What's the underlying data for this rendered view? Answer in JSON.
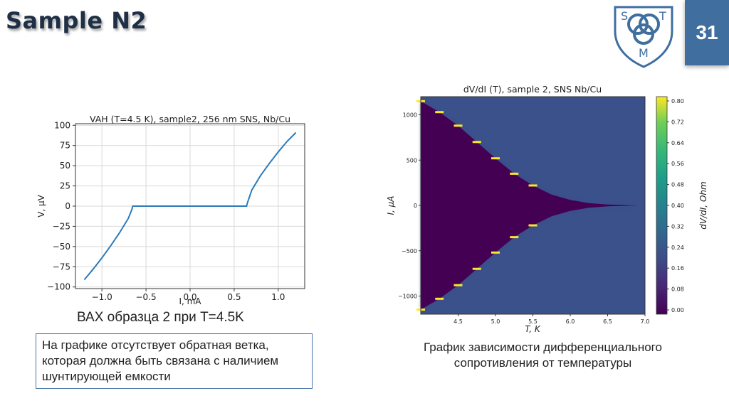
{
  "slide": {
    "title": "Sample N2",
    "page_number": "31",
    "logo_letters": [
      "S",
      "T",
      "M"
    ]
  },
  "captions": {
    "left": "ВАХ образца 2 при T=4.5K",
    "right": "График зависимости дифференциального сопротивления от температуры"
  },
  "note": {
    "text": "На графике отсутствует обратная ветка, которая должна быть связана с наличием шунтирующей емкости"
  },
  "colors": {
    "line": "#2b7bba",
    "title": "#1f2f45",
    "badge": "#3f6e9f",
    "box_border": "#4a75a8"
  },
  "chart_data": [
    {
      "type": "line",
      "title": "VAH (T=4.5 K), sample2, 256 nm SNS, Nb/Cu",
      "xlabel": "I, mA",
      "ylabel": "V, μV",
      "xlim": [
        -1.3,
        1.3
      ],
      "ylim": [
        -102,
        102
      ],
      "xticks": [
        -1.0,
        -0.5,
        0.0,
        0.5,
        1.0
      ],
      "xtick_labels": [
        "−1.0",
        "−0.5",
        "0.0",
        "0.5",
        "1.0"
      ],
      "yticks": [
        100,
        75,
        50,
        25,
        0,
        -25,
        -50,
        -75,
        -100
      ],
      "ytick_labels": [
        "100",
        "75",
        "50",
        "25",
        "0",
        "−25",
        "−50",
        "−75",
        "−100"
      ],
      "grid": true,
      "series": [
        {
          "x": [
            -1.2,
            -1.1,
            -1.0,
            -0.9,
            -0.8,
            -0.7,
            -0.66,
            -0.65,
            -0.5,
            0.0,
            0.5,
            0.64,
            0.65,
            0.7,
            0.8,
            0.9,
            1.0,
            1.1,
            1.2
          ],
          "y": [
            -91,
            -78,
            -64,
            -49,
            -33,
            -15,
            -4,
            0,
            0,
            0,
            0,
            0,
            4,
            20,
            38,
            53,
            67,
            80,
            91
          ]
        }
      ]
    },
    {
      "type": "heatmap",
      "title": "dV/dI (T), sample 2, SNS Nb/Cu",
      "xlabel": "T, K",
      "ylabel": "I, μA",
      "xlim": [
        4.0,
        7.0
      ],
      "ylim": [
        -1200,
        1200
      ],
      "xticks": [
        4.5,
        5.0,
        5.5,
        6.0,
        6.5,
        7.0
      ],
      "xtick_labels": [
        "4.5",
        "5.0",
        "5.5",
        "6.0",
        "6.5",
        "7.0"
      ],
      "yticks": [
        1000,
        500,
        0,
        -500,
        -1000
      ],
      "ytick_labels": [
        "1000",
        "500",
        "0",
        "−500",
        "−1000"
      ],
      "colorbar_label": "dV/dI, Ohm",
      "colorbar_ticks": [
        0.8,
        0.72,
        0.64,
        0.56,
        0.48,
        0.4,
        0.32,
        0.24,
        0.16,
        0.08,
        0.0
      ],
      "colorbar_tick_labels": [
        "0.80",
        "0.72",
        "0.64",
        "0.56",
        "0.48",
        "0.40",
        "0.32",
        "0.24",
        "0.16",
        "0.08",
        "0.00"
      ],
      "critical_current": {
        "T": [
          4.0,
          4.25,
          4.5,
          4.75,
          5.0,
          5.25,
          5.5,
          5.75,
          6.0,
          6.25,
          6.5,
          6.75
        ],
        "Ic": [
          1150,
          1030,
          880,
          700,
          520,
          350,
          220,
          120,
          60,
          25,
          10,
          4
        ]
      },
      "normal_state_value": 0.16,
      "peak_value": 0.8
    }
  ]
}
